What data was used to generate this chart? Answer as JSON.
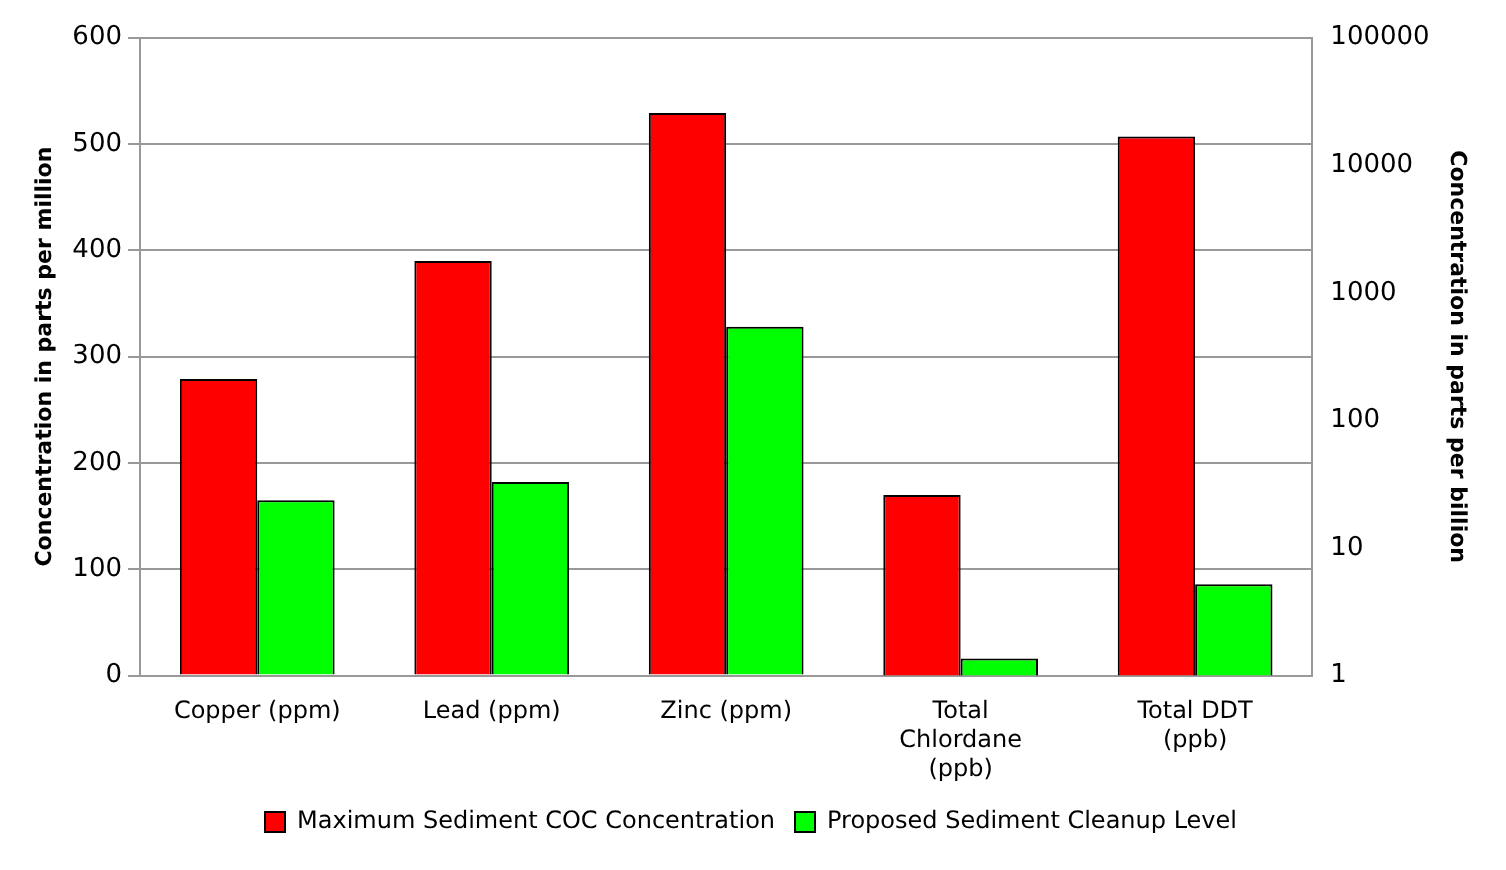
{
  "chart_data": {
    "type": "bar",
    "categories": [
      "Copper (ppm)",
      "Lead (ppm)",
      "Zinc (ppm)",
      "Total Chlordane (ppb)",
      "Total DDT (ppb)"
    ],
    "ylabel": "Concentration in parts per million",
    "y2label": "Concentration in parts per billion",
    "series": [
      {
        "name": "Maximum Sediment COC Concentration",
        "color": "#ff0000",
        "values": [
          279,
          390,
          529,
          null,
          null
        ]
      },
      {
        "name": "Proposed Sediment Cleanup Level",
        "color": "#00ff00",
        "values": [
          165,
          182,
          328,
          null,
          null
        ]
      },
      {
        "color": "#ff0000",
        "axis": "y2",
        "values": [
          null,
          null,
          null,
          26,
          16800
        ]
      },
      {
        "color": "#00ff00",
        "axis": "y2",
        "values": [
          null,
          null,
          null,
          1.36,
          5.2
        ]
      }
    ],
    "ylim": [
      0,
      600
    ],
    "yticks": [
      0,
      100,
      200,
      300,
      400,
      500,
      600
    ],
    "y2lim": [
      1,
      100000
    ],
    "y2ticks": [
      1,
      10,
      100,
      1000,
      10000,
      100000
    ],
    "log": "y2",
    "grid": "y",
    "legend": "bottom"
  }
}
